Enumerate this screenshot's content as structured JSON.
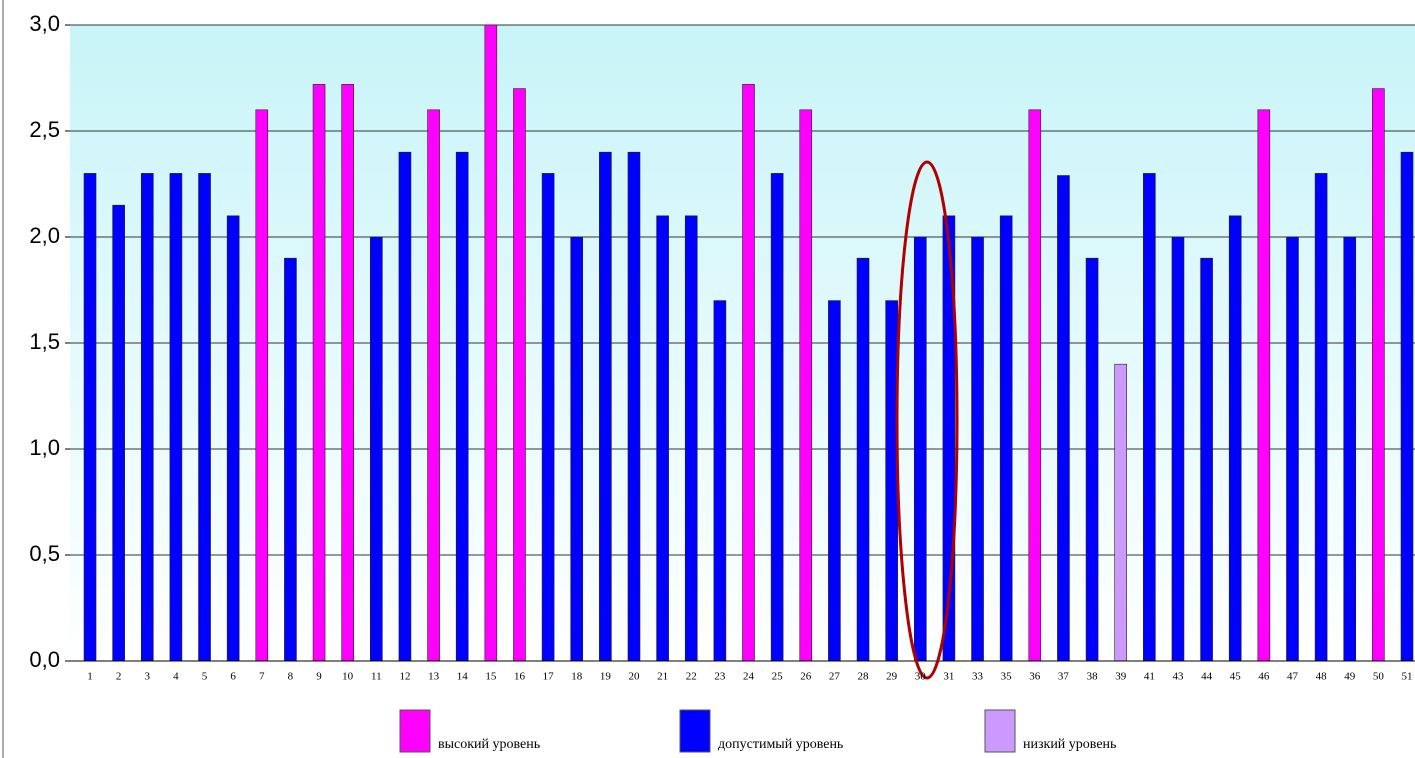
{
  "chart_data": {
    "type": "bar",
    "categories": [
      "1",
      "2",
      "3",
      "4",
      "5",
      "6",
      "7",
      "8",
      "9",
      "10",
      "11",
      "12",
      "13",
      "14",
      "15",
      "16",
      "17",
      "18",
      "19",
      "20",
      "21",
      "22",
      "23",
      "24",
      "25",
      "26",
      "27",
      "28",
      "29",
      "30",
      "31",
      "33",
      "35",
      "36",
      "37",
      "38",
      "39",
      "41",
      "43",
      "44",
      "45",
      "46",
      "47",
      "48",
      "49",
      "50",
      "51"
    ],
    "series": [
      {
        "name": "высокий уровень",
        "color": "#ff00ff",
        "values": [
          null,
          null,
          null,
          null,
          null,
          null,
          2.6,
          null,
          2.72,
          2.72,
          null,
          null,
          2.6,
          null,
          3.0,
          2.7,
          null,
          null,
          null,
          null,
          null,
          null,
          null,
          2.72,
          null,
          2.6,
          null,
          null,
          null,
          null,
          null,
          null,
          null,
          2.6,
          null,
          null,
          null,
          null,
          null,
          null,
          null,
          2.6,
          null,
          null,
          null,
          2.7,
          null
        ]
      },
      {
        "name": "допустимый уровень",
        "color": "#0000ff",
        "values": [
          2.3,
          2.15,
          2.3,
          2.3,
          2.3,
          2.1,
          null,
          1.9,
          null,
          null,
          2.0,
          2.4,
          null,
          2.4,
          null,
          null,
          2.3,
          2.0,
          2.4,
          2.4,
          2.1,
          2.1,
          1.7,
          null,
          2.3,
          null,
          1.7,
          1.9,
          1.7,
          2.0,
          2.1,
          2.0,
          2.1,
          null,
          2.29,
          1.9,
          null,
          2.3,
          2.0,
          1.9,
          2.1,
          null,
          2.0,
          2.3,
          2.0,
          null,
          2.4
        ]
      },
      {
        "name": "низкий уровень",
        "color": "#cc99ff",
        "values": [
          null,
          null,
          null,
          null,
          null,
          null,
          null,
          null,
          null,
          null,
          null,
          null,
          null,
          null,
          null,
          null,
          null,
          null,
          null,
          null,
          null,
          null,
          null,
          null,
          null,
          null,
          null,
          null,
          null,
          null,
          null,
          null,
          null,
          null,
          null,
          null,
          1.4,
          null,
          null,
          null,
          null,
          null,
          null,
          null,
          null,
          null,
          null
        ]
      }
    ],
    "ylim": [
      0,
      3
    ],
    "yticks": [
      {
        "value": 0,
        "label": "0,0"
      },
      {
        "value": 0.5,
        "label": "0,5"
      },
      {
        "value": 1,
        "label": "1,0"
      },
      {
        "value": 1.5,
        "label": "1,5"
      },
      {
        "value": 2,
        "label": "2,0"
      },
      {
        "value": 2.5,
        "label": "2,5"
      },
      {
        "value": 3,
        "label": "3,0"
      }
    ],
    "grid": true
  }
}
